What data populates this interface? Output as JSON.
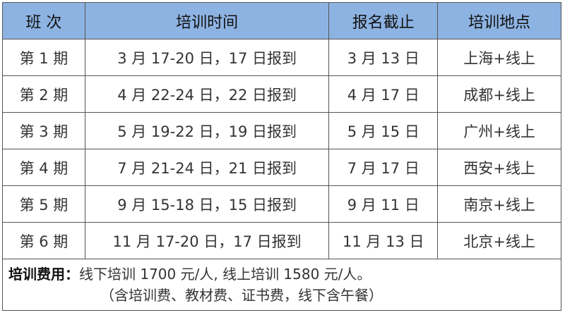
{
  "header": [
    "班 次",
    "培训时间",
    "报名截止",
    "培训地点"
  ],
  "rows": [
    [
      "第 1 期",
      "3 月 17-20 日，17 日报到",
      "3 月 13 日",
      "上海+线上"
    ],
    [
      "第 2 期",
      "4 月 22-24 日，22 日报到",
      "4 月 17 日",
      "成都+线上"
    ],
    [
      "第 3 期",
      "5 月 19-22 日，19 日报到",
      "5 月 15 日",
      "广州+线上"
    ],
    [
      "第 4 期",
      "7 月 21-24 日，21 日报到",
      "7 月 17 日",
      "西安+线上"
    ],
    [
      "第 5 期",
      "9 月 15-18 日，15 日报到",
      "9 月 11 日",
      "南京+线上"
    ],
    [
      "第 6 期",
      "11 月 17-20 日，17 日报到",
      "11 月 13 日",
      "北京+线上"
    ]
  ],
  "fee": {
    "label": "培训费用：",
    "text": "线下培训 1700 元/人, 线上培训 1580 元/人。",
    "note": "（含培训费、教材费、证书费，线下含午餐）"
  },
  "colors": {
    "header_bg": "#8db3e2"
  }
}
